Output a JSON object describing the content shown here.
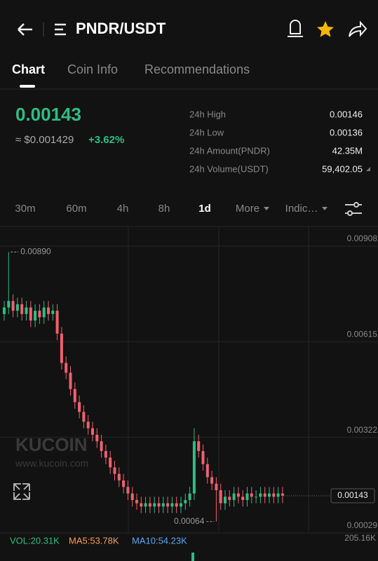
{
  "header": {
    "title": "PNDR/USDT"
  },
  "tabs": [
    "Chart",
    "Coin Info",
    "Recommendations"
  ],
  "price": {
    "last": "0.00143",
    "usd": "≈ $0.001429",
    "change": "+3.62%"
  },
  "stats": [
    {
      "label": "24h High",
      "value": "0.00146"
    },
    {
      "label": "24h Low",
      "value": "0.00136"
    },
    {
      "label": "24h Amount(PNDR)",
      "value": "42.35M"
    },
    {
      "label": "24h Volume(USDT)",
      "value": "59,402.05"
    }
  ],
  "intervals": [
    "30m",
    "60m",
    "4h",
    "8h",
    "1d",
    "More",
    "Indic…"
  ],
  "watermark": {
    "brand": "KUCOIN",
    "url": "www.kucoin.com"
  },
  "indicators": {
    "vol": "VOL:20.31K",
    "ma5": "MA5:53.78K",
    "ma10": "MA10:54.23K",
    "vol_axis": "205.16K"
  },
  "chart_data": {
    "type": "candlestick",
    "grid": true,
    "up_color": "#2ebd85",
    "down_color": "#f0616d",
    "ylim": [
      0.00029,
      0.00908
    ],
    "yticks": [
      0.00908,
      0.00615,
      0.00322,
      0.00029
    ],
    "high_label": "0.00890",
    "low_label": "0.00064",
    "last_label": "0.00143",
    "open": [
      0.007,
      0.0072,
      0.0074,
      0.0071,
      0.0073,
      0.007,
      0.0072,
      0.0068,
      0.0071,
      0.0069,
      0.0072,
      0.007,
      0.0071,
      0.0064,
      0.0055,
      0.0052,
      0.0047,
      0.0043,
      0.004,
      0.0037,
      0.0035,
      0.0033,
      0.0031,
      0.0028,
      0.0026,
      0.0023,
      0.0021,
      0.0019,
      0.0017,
      0.0015,
      0.0013,
      0.0012,
      0.0011,
      0.0012,
      0.0011,
      0.0012,
      0.0011,
      0.0012,
      0.0011,
      0.0012,
      0.0011,
      0.0012,
      0.0013,
      0.0015,
      0.0031,
      0.0028,
      0.0024,
      0.002,
      0.0018,
      0.0016,
      0.0012,
      0.0014,
      0.0013,
      0.0015,
      0.0014,
      0.0013,
      0.0015,
      0.0014,
      0.0014,
      0.0015,
      0.0014,
      0.0015,
      0.0014,
      0.0015
    ],
    "high": [
      0.0074,
      0.0089,
      0.0076,
      0.0075,
      0.0075,
      0.0074,
      0.0074,
      0.0073,
      0.0073,
      0.0074,
      0.0074,
      0.0073,
      0.0073,
      0.0066,
      0.0057,
      0.0054,
      0.0049,
      0.0045,
      0.0042,
      0.0039,
      0.0037,
      0.0035,
      0.0033,
      0.003,
      0.0028,
      0.0025,
      0.0023,
      0.0021,
      0.0019,
      0.0017,
      0.0015,
      0.0014,
      0.0014,
      0.0014,
      0.0014,
      0.0014,
      0.0014,
      0.0014,
      0.0014,
      0.0014,
      0.0014,
      0.0015,
      0.0017,
      0.0035,
      0.0033,
      0.003,
      0.0026,
      0.0022,
      0.002,
      0.0018,
      0.0016,
      0.0016,
      0.0017,
      0.0017,
      0.0016,
      0.0017,
      0.0017,
      0.0016,
      0.0017,
      0.0017,
      0.0017,
      0.0017,
      0.0017,
      0.0017
    ],
    "low": [
      0.0068,
      0.007,
      0.0069,
      0.0069,
      0.0068,
      0.0068,
      0.0066,
      0.0066,
      0.0067,
      0.0067,
      0.0068,
      0.0068,
      0.0062,
      0.0053,
      0.005,
      0.0045,
      0.0041,
      0.0038,
      0.0035,
      0.0033,
      0.0031,
      0.0029,
      0.0026,
      0.0024,
      0.0021,
      0.0019,
      0.0017,
      0.0015,
      0.0013,
      0.0011,
      0.001,
      0.0009,
      0.0009,
      0.0009,
      0.0009,
      0.0009,
      0.0009,
      0.0009,
      0.0009,
      0.0009,
      0.0009,
      0.001,
      0.0011,
      0.0013,
      0.0026,
      0.0022,
      0.0018,
      0.0016,
      0.00064,
      0.001,
      0.001,
      0.0011,
      0.0011,
      0.0012,
      0.0011,
      0.0011,
      0.0012,
      0.0012,
      0.0012,
      0.0012,
      0.0012,
      0.0012,
      0.0012,
      0.0012
    ],
    "close": [
      0.0072,
      0.0074,
      0.0071,
      0.0073,
      0.007,
      0.0072,
      0.0068,
      0.0071,
      0.0069,
      0.0072,
      0.007,
      0.0071,
      0.0064,
      0.0055,
      0.0052,
      0.0047,
      0.0043,
      0.004,
      0.0037,
      0.0035,
      0.0033,
      0.0031,
      0.0028,
      0.0026,
      0.0023,
      0.0021,
      0.0019,
      0.0017,
      0.0015,
      0.0013,
      0.0012,
      0.0011,
      0.0012,
      0.0011,
      0.0012,
      0.0011,
      0.0012,
      0.0011,
      0.0012,
      0.0011,
      0.0012,
      0.0013,
      0.0015,
      0.0031,
      0.0028,
      0.0024,
      0.002,
      0.0018,
      0.0016,
      0.0012,
      0.0014,
      0.0013,
      0.0015,
      0.0014,
      0.0013,
      0.0015,
      0.0014,
      0.0014,
      0.0015,
      0.0014,
      0.0015,
      0.0014,
      0.0015,
      0.00143
    ]
  }
}
